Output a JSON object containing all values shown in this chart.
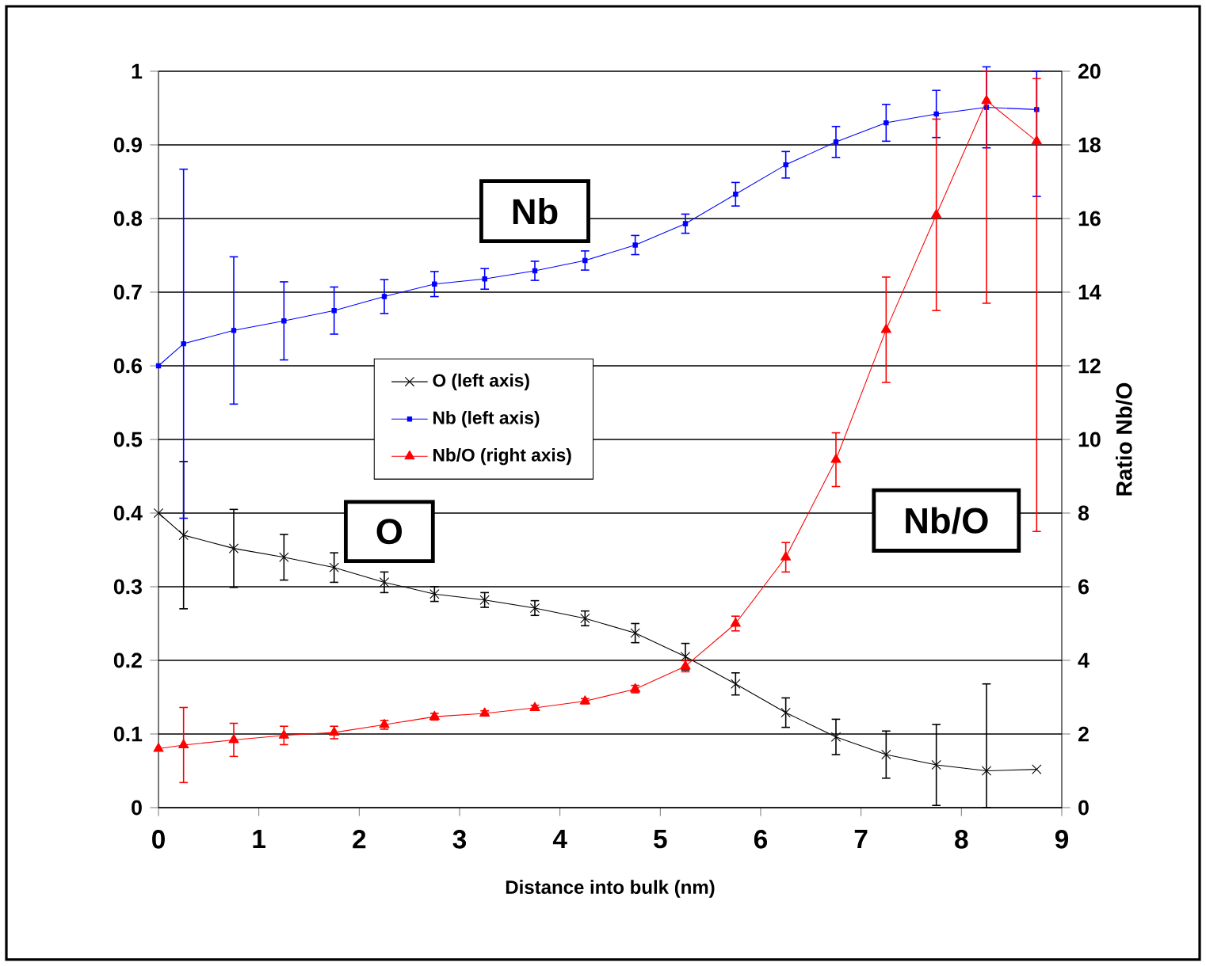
{
  "chart_data": {
    "type": "line",
    "xlabel": "Distance into bulk (nm)",
    "y2label": "Ratio Nb/O",
    "x": [
      0,
      0.25,
      0.75,
      1.25,
      1.75,
      2.25,
      2.75,
      3.25,
      3.75,
      4.25,
      4.75,
      5.25,
      5.75,
      6.25,
      6.75,
      7.25,
      7.75,
      8.25,
      8.75
    ],
    "series": [
      {
        "name": "O (left axis)",
        "color": "#000000",
        "marker": "cross",
        "values": [
          0.4,
          0.37,
          0.352,
          0.34,
          0.326,
          0.306,
          0.29,
          0.282,
          0.271,
          0.257,
          0.237,
          0.205,
          0.168,
          0.129,
          0.096,
          0.072,
          0.058,
          0.05,
          0.052
        ],
        "errors": [
          null,
          0.1,
          0.053,
          0.031,
          0.02,
          0.014,
          0.01,
          0.01,
          0.01,
          0.01,
          0.013,
          0.018,
          0.015,
          0.02,
          0.024,
          0.032,
          0.055,
          [
            0,
            0.168
          ],
          null
        ]
      },
      {
        "name": "Nb (left axis)",
        "color": "#0000ff",
        "marker": "square",
        "values": [
          0.6,
          0.63,
          0.648,
          0.661,
          0.675,
          0.694,
          0.711,
          0.718,
          0.729,
          0.743,
          0.764,
          0.793,
          0.833,
          0.873,
          0.904,
          0.93,
          0.942,
          0.951,
          0.948
        ],
        "errors": [
          null,
          0.237,
          0.1,
          0.053,
          0.032,
          0.023,
          0.017,
          0.014,
          0.013,
          0.013,
          0.013,
          0.013,
          0.016,
          0.018,
          0.021,
          0.025,
          0.032,
          0.055,
          [
            0.83,
            1.0
          ]
        ]
      },
      {
        "name": "Nb/O (right axis)",
        "color": "#ff0000",
        "marker": "triangle",
        "axis": "y2",
        "values": [
          1.6,
          1.7,
          1.84,
          1.96,
          2.04,
          2.25,
          2.47,
          2.56,
          2.71,
          2.89,
          3.22,
          3.84,
          5.0,
          6.8,
          9.45,
          12.98,
          16.1,
          19.2,
          18.1
        ],
        "errors": [
          null,
          1.02,
          0.45,
          0.25,
          0.17,
          0.12,
          0.09,
          0.07,
          0.07,
          0.07,
          0.1,
          0.15,
          0.2,
          0.4,
          0.73,
          1.43,
          2.6,
          [
            13.7,
            20
          ],
          [
            7.5,
            19.8
          ]
        ]
      }
    ],
    "annotations": [
      "Nb",
      "O",
      "Nb/O"
    ],
    "xlim": [
      0,
      9
    ],
    "xticks": [
      0,
      1,
      2,
      3,
      4,
      5,
      6,
      7,
      8,
      9
    ],
    "ylim": [
      0,
      1
    ],
    "yticks": [
      0,
      0.1,
      0.2,
      0.3,
      0.4,
      0.5,
      0.6,
      0.7,
      0.8,
      0.9,
      1
    ],
    "y2lim": [
      0,
      20
    ],
    "y2ticks": [
      0,
      2,
      4,
      6,
      8,
      10,
      12,
      14,
      16,
      18,
      20
    ],
    "grid": "y",
    "legend": "center"
  }
}
